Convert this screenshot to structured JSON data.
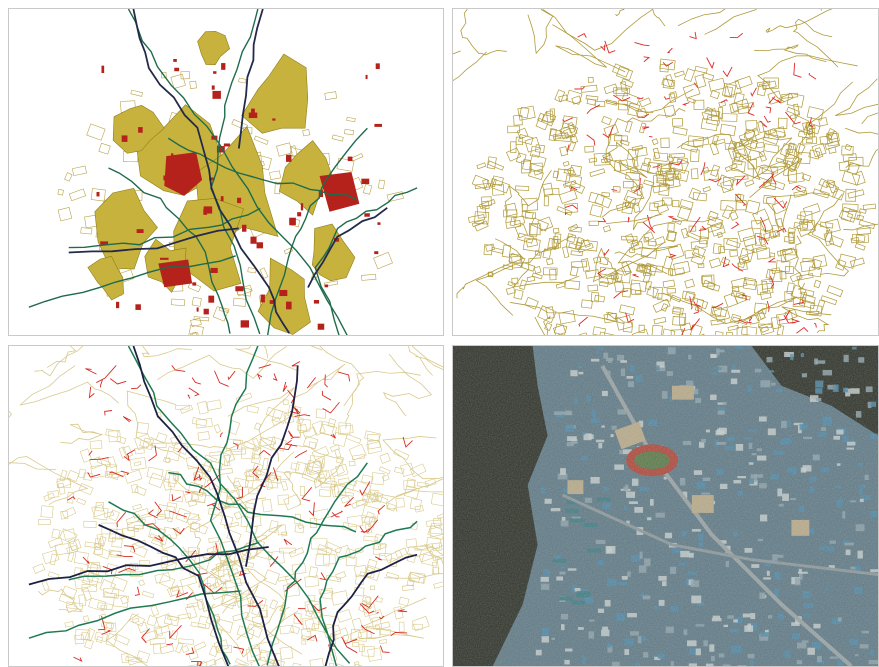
{
  "panels": [
    {
      "id": "p1",
      "content": "forest-cover-with-red-parcels-and-drainage-lines",
      "colors": {
        "forest": "#c6b23c",
        "forest_edge": "#8f7f1e",
        "parcel": "#b5221c",
        "stream": "#1f6b4c",
        "road": "#232a4a",
        "parcel_outline": "#b9a44a"
      }
    },
    {
      "id": "p2",
      "content": "cadastral-parcel-network-with-red-highlighted-segments",
      "colors": {
        "parcel_line": "#b09a3a",
        "highlight": "#e0282a"
      }
    },
    {
      "id": "p3",
      "content": "overlay-of-parcels-streams-and-roads",
      "colors": {
        "parcel_line": "#d9c98a",
        "red_lines": "#d62a22",
        "stream": "#1f7a52",
        "road": "#1d2144"
      }
    },
    {
      "id": "p4",
      "content": "aerial-satellite-photo-of-dense-urban-valley",
      "colors": {
        "vegetation": "#2a2f25",
        "urban": "#6f8a96",
        "roofs_blue": "#4f89a8",
        "stadium_track": "#b0473a",
        "field": "#5b7a48"
      }
    }
  ]
}
